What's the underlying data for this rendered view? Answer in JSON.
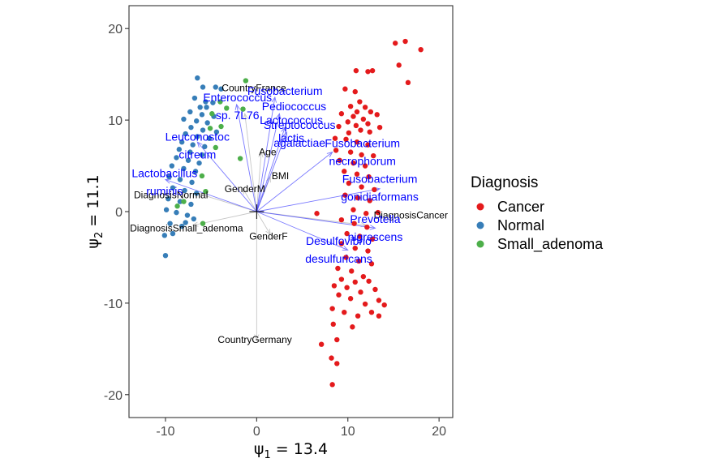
{
  "chart_data": {
    "type": "scatter",
    "title": "",
    "xlabel_symbol": "ψ",
    "xlabel_sub": "1",
    "xlabel_value": " = 13.4",
    "ylabel_symbol": "ψ",
    "ylabel_sub": "2",
    "ylabel_value": " = 11.1",
    "xlim": [
      -14,
      21.5
    ],
    "ylim": [
      -22.5,
      22.5
    ],
    "xticks": [
      -10,
      0,
      10,
      20
    ],
    "yticks": [
      -20,
      -10,
      0,
      10,
      20
    ],
    "xtick_labels": [
      "-10",
      "0",
      "10",
      "20"
    ],
    "ytick_labels": [
      "-20",
      "-10",
      "0",
      "10",
      "20"
    ],
    "grid": false,
    "legend": {
      "title": "Diagnosis",
      "position": "right",
      "entries": [
        {
          "name": "Cancer",
          "color": "#e41a1c"
        },
        {
          "name": "Normal",
          "color": "#377eb8"
        },
        {
          "name": "Small_adenoma",
          "color": "#4daf4a"
        }
      ]
    },
    "origin_marker": {
      "x": 0,
      "y": 0
    },
    "series": [
      {
        "name": "Cancer",
        "color": "#e41a1c",
        "points": [
          [
            16.3,
            18.6
          ],
          [
            18.0,
            17.7
          ],
          [
            15.2,
            18.4
          ],
          [
            15.6,
            16.0
          ],
          [
            16.6,
            14.1
          ],
          [
            10.9,
            15.4
          ],
          [
            12.2,
            15.3
          ],
          [
            12.7,
            15.4
          ],
          [
            9.7,
            13.4
          ],
          [
            10.8,
            13.1
          ],
          [
            11.3,
            12.0
          ],
          [
            10.3,
            11.5
          ],
          [
            11.0,
            10.9
          ],
          [
            11.9,
            11.4
          ],
          [
            12.5,
            10.9
          ],
          [
            9.3,
            10.7
          ],
          [
            10.6,
            10.4
          ],
          [
            11.7,
            10.1
          ],
          [
            12.2,
            9.6
          ],
          [
            13.2,
            10.6
          ],
          [
            10.0,
            9.8
          ],
          [
            10.9,
            9.4
          ],
          [
            11.4,
            8.9
          ],
          [
            12.4,
            8.7
          ],
          [
            9.0,
            9.3
          ],
          [
            10.1,
            8.6
          ],
          [
            13.5,
            9.2
          ],
          [
            8.6,
            8.0
          ],
          [
            9.8,
            7.9
          ],
          [
            11.0,
            7.6
          ],
          [
            12.2,
            7.3
          ],
          [
            8.7,
            6.7
          ],
          [
            10.3,
            6.5
          ],
          [
            11.5,
            6.2
          ],
          [
            12.8,
            6.1
          ],
          [
            9.1,
            5.6
          ],
          [
            10.6,
            5.3
          ],
          [
            11.9,
            5.0
          ],
          [
            9.6,
            4.4
          ],
          [
            11.0,
            4.1
          ],
          [
            12.3,
            3.8
          ],
          [
            10.1,
            3.1
          ],
          [
            11.5,
            2.7
          ],
          [
            12.9,
            2.4
          ],
          [
            9.7,
            1.8
          ],
          [
            11.1,
            1.5
          ],
          [
            12.4,
            1.2
          ],
          [
            6.6,
            -0.2
          ],
          [
            10.6,
            0.2
          ],
          [
            12.0,
            -0.2
          ],
          [
            13.3,
            -0.1
          ],
          [
            9.3,
            -0.9
          ],
          [
            10.7,
            -1.3
          ],
          [
            12.1,
            -1.7
          ],
          [
            9.9,
            -2.4
          ],
          [
            11.3,
            -2.7
          ],
          [
            12.7,
            -3.0
          ],
          [
            9.3,
            -3.5
          ],
          [
            10.8,
            -4.0
          ],
          [
            12.2,
            -4.3
          ],
          [
            9.8,
            -5.0
          ],
          [
            11.2,
            -5.4
          ],
          [
            12.6,
            -5.7
          ],
          [
            8.9,
            -6.2
          ],
          [
            10.4,
            -6.5
          ],
          [
            11.7,
            -7.1
          ],
          [
            9.3,
            -7.4
          ],
          [
            10.8,
            -7.7
          ],
          [
            12.3,
            -7.6
          ],
          [
            8.5,
            -8.1
          ],
          [
            9.9,
            -8.3
          ],
          [
            11.4,
            -8.8
          ],
          [
            13.0,
            -8.5
          ],
          [
            9.0,
            -9.1
          ],
          [
            10.3,
            -9.5
          ],
          [
            11.9,
            -10.1
          ],
          [
            13.4,
            -9.7
          ],
          [
            8.3,
            -10.6
          ],
          [
            9.6,
            -11.0
          ],
          [
            11.1,
            -11.4
          ],
          [
            12.6,
            -11.0
          ],
          [
            14.0,
            -10.2
          ],
          [
            10.5,
            -12.6
          ],
          [
            8.4,
            -12.3
          ],
          [
            8.8,
            -14.0
          ],
          [
            7.1,
            -14.5
          ],
          [
            8.2,
            -16.0
          ],
          [
            8.8,
            -16.6
          ],
          [
            8.3,
            -18.9
          ],
          [
            13.4,
            -11.4
          ]
        ]
      },
      {
        "name": "Normal",
        "color": "#377eb8",
        "points": [
          [
            -6.5,
            14.6
          ],
          [
            -5.9,
            13.6
          ],
          [
            -4.5,
            13.6
          ],
          [
            -3.9,
            13.4
          ],
          [
            -6.8,
            12.4
          ],
          [
            -5.6,
            12.0
          ],
          [
            -4.8,
            11.9
          ],
          [
            -6.2,
            11.4
          ],
          [
            -5.5,
            11.4
          ],
          [
            -7.3,
            10.9
          ],
          [
            -6.0,
            10.6
          ],
          [
            -4.7,
            10.4
          ],
          [
            -8.0,
            10.1
          ],
          [
            -6.6,
            9.9
          ],
          [
            -5.4,
            9.7
          ],
          [
            -7.2,
            9.2
          ],
          [
            -5.9,
            8.9
          ],
          [
            -4.4,
            8.7
          ],
          [
            -7.8,
            8.5
          ],
          [
            -6.5,
            8.2
          ],
          [
            -5.2,
            8.0
          ],
          [
            -8.2,
            7.6
          ],
          [
            -7.0,
            7.3
          ],
          [
            -5.7,
            7.1
          ],
          [
            -8.5,
            6.8
          ],
          [
            -7.3,
            6.5
          ],
          [
            -6.0,
            6.2
          ],
          [
            -8.8,
            5.9
          ],
          [
            -7.5,
            5.6
          ],
          [
            -6.3,
            5.3
          ],
          [
            -9.3,
            5.0
          ],
          [
            -8.0,
            4.7
          ],
          [
            -6.7,
            4.4
          ],
          [
            -9.6,
            3.8
          ],
          [
            -8.4,
            3.5
          ],
          [
            -7.1,
            3.2
          ],
          [
            -9.2,
            2.6
          ],
          [
            -7.9,
            2.3
          ],
          [
            -6.6,
            2.0
          ],
          [
            -9.7,
            1.4
          ],
          [
            -8.4,
            1.1
          ],
          [
            -7.2,
            0.8
          ],
          [
            -9.9,
            0.2
          ],
          [
            -8.8,
            -0.1
          ],
          [
            -7.6,
            -0.4
          ],
          [
            -9.5,
            -1.3
          ],
          [
            -8.2,
            -1.6
          ],
          [
            -10.1,
            -2.6
          ],
          [
            -9.2,
            -2.4
          ],
          [
            -10.0,
            -4.8
          ],
          [
            -7.8,
            -1.2
          ],
          [
            -6.9,
            -0.8
          ]
        ]
      },
      {
        "name": "Small_adenoma",
        "color": "#4daf4a",
        "points": [
          [
            -1.2,
            14.3
          ],
          [
            -4.0,
            12.0
          ],
          [
            -3.3,
            11.3
          ],
          [
            -4.9,
            10.7
          ],
          [
            -3.9,
            9.3
          ],
          [
            -5.1,
            9.1
          ],
          [
            -1.5,
            11.2
          ],
          [
            -4.5,
            7.0
          ],
          [
            -1.8,
            5.8
          ],
          [
            -6.0,
            3.9
          ],
          [
            -8.0,
            1.1
          ],
          [
            -5.6,
            2.2
          ],
          [
            -8.7,
            0.6
          ],
          [
            -5.9,
            -1.3
          ]
        ]
      }
    ],
    "variable_arrows": [
      {
        "label": "Age",
        "x": 0.5,
        "y": 6.5,
        "label_x": 1.2,
        "label_y": 6.5
      },
      {
        "label": "BMI",
        "x": 1.5,
        "y": 3.8,
        "label_x": 2.6,
        "label_y": 3.9
      },
      {
        "label": "CountryFrance",
        "x": -1.3,
        "y": 10.7,
        "label_x": -0.3,
        "label_y": 13.5
      },
      {
        "label": "CountryGermany",
        "x": 0.0,
        "y": -14.0,
        "label_x": -0.2,
        "label_y": -14.0
      },
      {
        "label": "GenderM",
        "x": -1.5,
        "y": 2.5,
        "label_x": -1.3,
        "label_y": 2.5
      },
      {
        "label": "GenderF",
        "x": 1.5,
        "y": -2.5,
        "label_x": 1.3,
        "label_y": -2.7
      },
      {
        "label": "DiagnosisNormal",
        "x": -6.5,
        "y": 2.0,
        "label_x": -9.4,
        "label_y": 1.8
      },
      {
        "label": "DiagnosisSmall_adenoma",
        "x": -7.0,
        "y": -1.5,
        "label_x": -7.7,
        "label_y": -1.8
      },
      {
        "label": "DiagnosisCancer",
        "x": 12.0,
        "y": -1.5,
        "label_x": 16.9,
        "label_y": -0.4
      }
    ],
    "taxa_arrows": [
      {
        "lines": [
          "Fusobacterium"
        ],
        "x": 2.0,
        "y": 12.5,
        "label_x": 3.1,
        "label_y": 13.2
      },
      {
        "lines": [
          "Enterococcus",
          "sp. 7L76"
        ],
        "x": -2.2,
        "y": 11.7,
        "label_x": -2.1,
        "label_y": 12.5
      },
      {
        "lines": [
          "Pediococcus"
        ],
        "x": 2.5,
        "y": 10.7,
        "label_x": 4.1,
        "label_y": 11.5
      },
      {
        "lines": [
          "Streptococcus",
          "agalactiae"
        ],
        "x": 3.3,
        "y": 8.7,
        "label_x": 4.7,
        "label_y": 9.5
      },
      {
        "lines": [
          "Lactococcus",
          "lactis"
        ],
        "x": 3.1,
        "y": 9.2,
        "label_x": 3.8,
        "label_y": 10.0
      },
      {
        "lines": [
          "Fusobacterium",
          "necrophorum"
        ],
        "x": 8.3,
        "y": 6.5,
        "label_x": 11.6,
        "label_y": 7.5
      },
      {
        "lines": [
          "Leuconostoc",
          "citreum"
        ],
        "x": -6.5,
        "y": 7.6,
        "label_x": -6.5,
        "label_y": 8.2
      },
      {
        "lines": [
          "Lactobacillus",
          "ruminis"
        ],
        "x": -10.0,
        "y": 3.5,
        "label_x": -10.1,
        "label_y": 4.2
      },
      {
        "lines": [
          "Fusobacterium",
          "gonidiaformans"
        ],
        "x": 13.5,
        "y": 2.5,
        "label_x": 13.5,
        "label_y": 3.6
      },
      {
        "lines": [
          "Prevotella",
          "nigrescens"
        ],
        "x": 13.0,
        "y": -1.8,
        "label_x": 13.0,
        "label_y": -0.8
      },
      {
        "lines": [
          "Desulfovibrio",
          "desulfuricans"
        ],
        "x": 10.0,
        "y": -4.2,
        "label_x": 9.0,
        "label_y": -3.2
      }
    ]
  }
}
